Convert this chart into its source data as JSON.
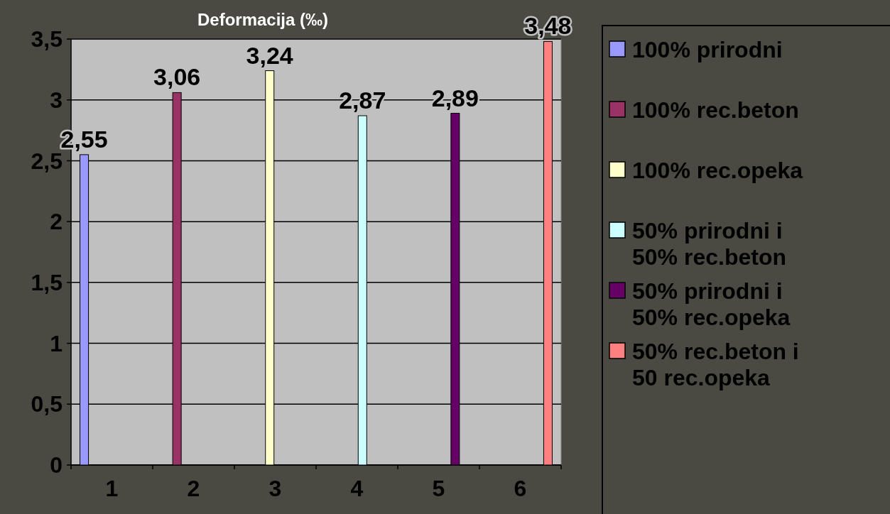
{
  "chart_data": {
    "type": "bar",
    "title": "Deformacija (‰)",
    "categories": [
      "1",
      "2",
      "3",
      "4",
      "5",
      "6"
    ],
    "series": [
      {
        "name": "100% prirodni",
        "color": "#9999ff",
        "values": [
          2.55,
          null,
          null,
          null,
          null,
          null
        ],
        "value_labels": [
          "2,55",
          null,
          null,
          null,
          null,
          null
        ]
      },
      {
        "name": "100% rec.beton",
        "color": "#993366",
        "values": [
          null,
          3.06,
          null,
          null,
          null,
          null
        ],
        "value_labels": [
          null,
          "3,06",
          null,
          null,
          null,
          null
        ]
      },
      {
        "name": "100% rec.opeka",
        "color": "#ffffcc",
        "values": [
          null,
          null,
          3.24,
          null,
          null,
          null
        ],
        "value_labels": [
          null,
          null,
          "3,24",
          null,
          null,
          null
        ]
      },
      {
        "name": "50% prirodni i 50% rec.beton",
        "color": "#ccffff",
        "values": [
          null,
          null,
          null,
          2.87,
          null,
          null
        ],
        "value_labels": [
          null,
          null,
          null,
          "2,87",
          null,
          null
        ]
      },
      {
        "name": "50% prirodni i 50% rec.opeka",
        "color": "#660066",
        "values": [
          null,
          null,
          null,
          null,
          2.89,
          null
        ],
        "value_labels": [
          null,
          null,
          null,
          null,
          "2,89",
          null
        ]
      },
      {
        "name": "50% rec.beton i 50 rec.opeka",
        "color": "#ff8080",
        "values": [
          null,
          null,
          null,
          null,
          null,
          3.48
        ],
        "value_labels": [
          null,
          null,
          null,
          null,
          null,
          "3,48"
        ]
      }
    ],
    "ylim": [
      0,
      3.5
    ],
    "yticks": [
      0,
      {
        "value": 0.5,
        "label": "0,5"
      },
      1,
      {
        "value": 1.5,
        "label": "1,5"
      },
      2,
      {
        "value": 2.5,
        "label": "2,5"
      },
      3,
      {
        "value": 3.5,
        "label": "3,5"
      }
    ],
    "grid": "y",
    "legend": "right"
  }
}
